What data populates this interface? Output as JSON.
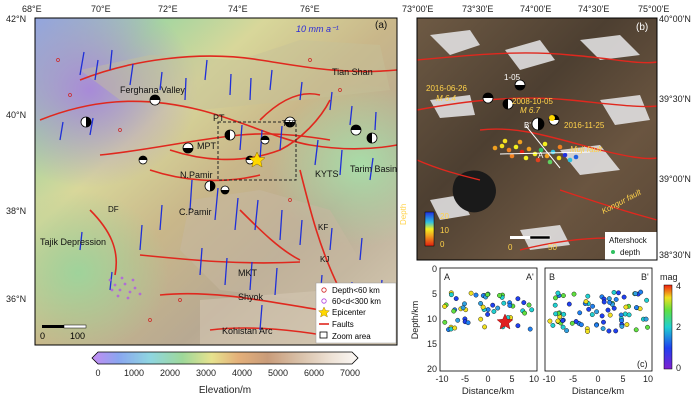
{
  "panel_a": {
    "tag": "(a)",
    "lat_labels": [
      "42°N",
      "40°N",
      "38°N",
      "36°N"
    ],
    "lon_labels": [
      "68°E",
      "70°E",
      "72°E",
      "74°E",
      "76°E"
    ],
    "velocity_label": "10 mm a⁻¹",
    "places": {
      "tian_shan": "Tian Shan",
      "fergana": "Ferghana Valley",
      "tarim": "Tarim Basin",
      "pt": "PT",
      "mpt": "MPT",
      "n_pamir": "N.Pamir",
      "c_pamir": "C.Pamir",
      "kyts": "KYTS",
      "tajik": "Tajik Depression",
      "mkt": "MKT",
      "shyok": "Shyok",
      "kohistan": "Kohistan Arc",
      "df": "DF",
      "kf": "KF",
      "kj": "KJ",
      "ttf": "TTF"
    },
    "scale_labels": [
      "0",
      "100"
    ],
    "legend": {
      "depth_shallow": "Depth<60 km",
      "depth_mid": "60<d<300 km",
      "epicenter": "Epicenter",
      "faults": "Faults",
      "zoom": "Zoom area"
    }
  },
  "panel_b": {
    "tag": "(b)",
    "lat_labels": [
      "40°00'N",
      "39°30'N",
      "39°00'N",
      "38°30'N"
    ],
    "lon_labels": [
      "73°00'E",
      "73°30'E",
      "74°00'E",
      "74°30'E",
      "75°00'E"
    ],
    "events": [
      {
        "date": "2016-06-26",
        "mag": "M 6.4"
      },
      {
        "date": "2008-10-05",
        "mag": "M 6.7"
      },
      {
        "date": "2016-11-25",
        "mag": ""
      },
      {
        "date": "1-05",
        "mag": ""
      }
    ],
    "labels": {
      "b_prime": "B'",
      "a_prime": "A",
      "a": "A",
      "muji": "Muji fault",
      "kongur": "Kongur fault"
    },
    "depth_title": "Depth",
    "depth_ticks": [
      "20",
      "10",
      "0"
    ],
    "scale_labels": [
      "0",
      "50"
    ],
    "aftershock_label": "Aftershock",
    "aftershock_sub": "depth"
  },
  "panel_c": {
    "tag": "(c)",
    "ylabel": "Depth/km",
    "xlabel": "Distance/km",
    "left_end_labels": [
      "A",
      "A'"
    ],
    "right_end_labels": [
      "B",
      "B'"
    ],
    "y_ticks": [
      "0",
      "5",
      "10",
      "15",
      "20"
    ],
    "x_ticks": [
      "-10",
      "-5",
      "0",
      "5",
      "10"
    ],
    "mag_title": "mag",
    "mag_ticks": [
      "4",
      "2",
      "0"
    ]
  },
  "colorbar": {
    "ticks": [
      "0",
      "1000",
      "2000",
      "3000",
      "4000",
      "5000",
      "6000",
      "7000"
    ],
    "title": "Elevation/m"
  },
  "colors": {
    "fault": "#e0281e",
    "vector": "#1f2fd8",
    "epicenter": "#ffd800",
    "shallow_eq": "#d02020",
    "mid_eq": "#b040e0"
  }
}
